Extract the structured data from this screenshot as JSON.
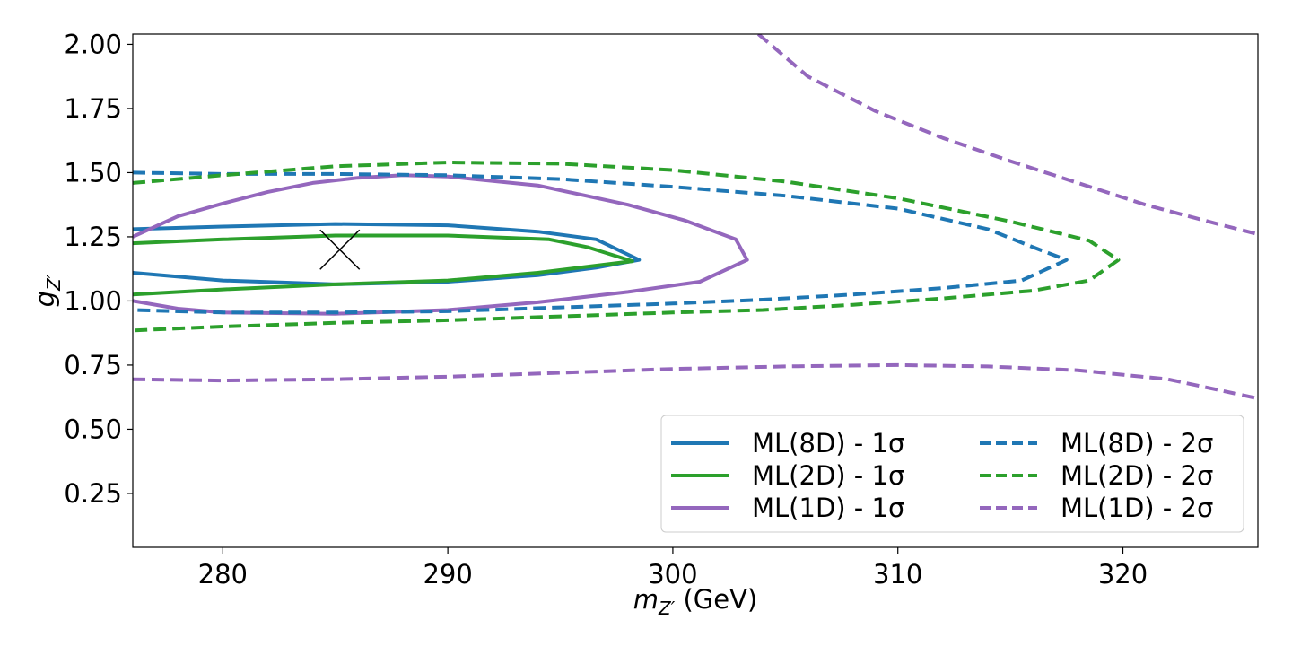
{
  "chart_data": {
    "type": "line",
    "xlabel": "m_Z′ (GeV)",
    "xlabel_parts": {
      "symbol": "m",
      "sub": "Z′",
      "unit": " (GeV)"
    },
    "ylabel": "g_Z′",
    "ylabel_parts": {
      "symbol": "g",
      "sub": "Z′"
    },
    "xlim": [
      276,
      326
    ],
    "ylim": [
      0.04,
      2.04
    ],
    "xticks": [
      280,
      290,
      300,
      310,
      320
    ],
    "xtick_labels": [
      "280",
      "290",
      "300",
      "310",
      "320"
    ],
    "yticks": [
      0.25,
      0.5,
      0.75,
      1.0,
      1.25,
      1.5,
      1.75,
      2.0
    ],
    "ytick_labels": [
      "0.25",
      "0.50",
      "0.75",
      "1.00",
      "1.25",
      "1.50",
      "1.75",
      "2.00"
    ],
    "grid": false,
    "legend_position": "lower-right",
    "legend_columns": 2,
    "best_fit_marker": {
      "x": 285.2,
      "y": 1.2,
      "symbol": "x",
      "color": "#000000"
    },
    "series": [
      {
        "name": "ML(8D) - 1σ",
        "color": "#1f77b4",
        "dash": "solid",
        "x": [
          276,
          280,
          285,
          290,
          294,
          296.6,
          298.5,
          296.6,
          294,
          290,
          285,
          280,
          276
        ],
        "y": [
          1.28,
          1.29,
          1.3,
          1.295,
          1.27,
          1.24,
          1.16,
          1.13,
          1.1,
          1.075,
          1.065,
          1.08,
          1.11
        ]
      },
      {
        "name": "ML(2D) - 1σ",
        "color": "#2ca02c",
        "dash": "solid",
        "x": [
          276,
          280,
          285,
          290,
          294.5,
          296.2,
          298.2,
          294,
          290,
          285,
          280,
          276
        ],
        "y": [
          1.225,
          1.24,
          1.255,
          1.255,
          1.24,
          1.21,
          1.155,
          1.11,
          1.08,
          1.065,
          1.045,
          1.025
        ]
      },
      {
        "name": "ML(1D) - 1σ",
        "color": "#9467bd",
        "dash": "solid",
        "x": [
          276,
          278,
          280,
          282,
          284,
          286,
          288,
          290,
          294,
          298,
          300.5,
          302.8,
          303.3,
          301.2,
          298,
          294,
          290,
          285,
          280,
          278,
          276
        ],
        "y": [
          1.25,
          1.33,
          1.38,
          1.425,
          1.46,
          1.48,
          1.49,
          1.485,
          1.45,
          1.375,
          1.315,
          1.24,
          1.16,
          1.075,
          1.035,
          0.995,
          0.965,
          0.95,
          0.955,
          0.97,
          1.0
        ]
      },
      {
        "name": "ML(8D) - 2σ",
        "color": "#1f77b4",
        "dash": "dashed",
        "x": [
          276,
          280,
          285,
          290,
          295,
          300,
          305,
          310,
          314,
          316,
          317.5,
          315.5,
          312,
          308,
          304,
          300,
          295,
          290,
          285,
          280,
          276
        ],
        "y": [
          1.5,
          1.495,
          1.495,
          1.49,
          1.475,
          1.445,
          1.41,
          1.36,
          1.28,
          1.21,
          1.16,
          1.08,
          1.05,
          1.025,
          1.005,
          0.99,
          0.975,
          0.96,
          0.955,
          0.955,
          0.965
        ]
      },
      {
        "name": "ML(2D) - 2σ",
        "color": "#2ca02c",
        "dash": "dashed",
        "x": [
          276,
          280,
          285,
          290,
          295,
          300,
          305,
          310,
          315,
          318.5,
          319.8,
          318.5,
          316,
          312,
          308,
          304,
          300,
          295,
          290,
          285,
          280,
          276
        ],
        "y": [
          1.46,
          1.49,
          1.525,
          1.54,
          1.535,
          1.51,
          1.465,
          1.4,
          1.31,
          1.235,
          1.16,
          1.08,
          1.04,
          1.01,
          0.985,
          0.965,
          0.955,
          0.94,
          0.925,
          0.915,
          0.9,
          0.885
        ]
      },
      {
        "name": "ML(1D) - 2σ",
        "color": "#9467bd",
        "dash": "dashed",
        "x": [
          303.8,
          306,
          309,
          312,
          315,
          318,
          321,
          324,
          326
        ],
        "y": [
          2.04,
          1.875,
          1.74,
          1.635,
          1.545,
          1.46,
          1.375,
          1.305,
          1.26
        ]
      },
      {
        "name": "ML(1D) - 2σ",
        "color": "#9467bd",
        "dash": "dashed",
        "x": [
          276,
          280,
          285,
          290,
          295,
          300,
          305,
          310,
          314,
          318,
          322,
          326
        ],
        "y": [
          0.695,
          0.69,
          0.695,
          0.705,
          0.72,
          0.735,
          0.745,
          0.75,
          0.745,
          0.73,
          0.695,
          0.62
        ]
      }
    ],
    "legend": [
      {
        "label": "ML(8D) - 1σ",
        "color": "#1f77b4",
        "dash": "solid"
      },
      {
        "label": "ML(2D) - 1σ",
        "color": "#2ca02c",
        "dash": "solid"
      },
      {
        "label": "ML(1D) - 1σ",
        "color": "#9467bd",
        "dash": "solid"
      },
      {
        "label": "ML(8D) - 2σ",
        "color": "#1f77b4",
        "dash": "dashed"
      },
      {
        "label": "ML(2D) - 2σ",
        "color": "#2ca02c",
        "dash": "dashed"
      },
      {
        "label": "ML(1D) - 2σ",
        "color": "#9467bd",
        "dash": "dashed"
      }
    ]
  }
}
